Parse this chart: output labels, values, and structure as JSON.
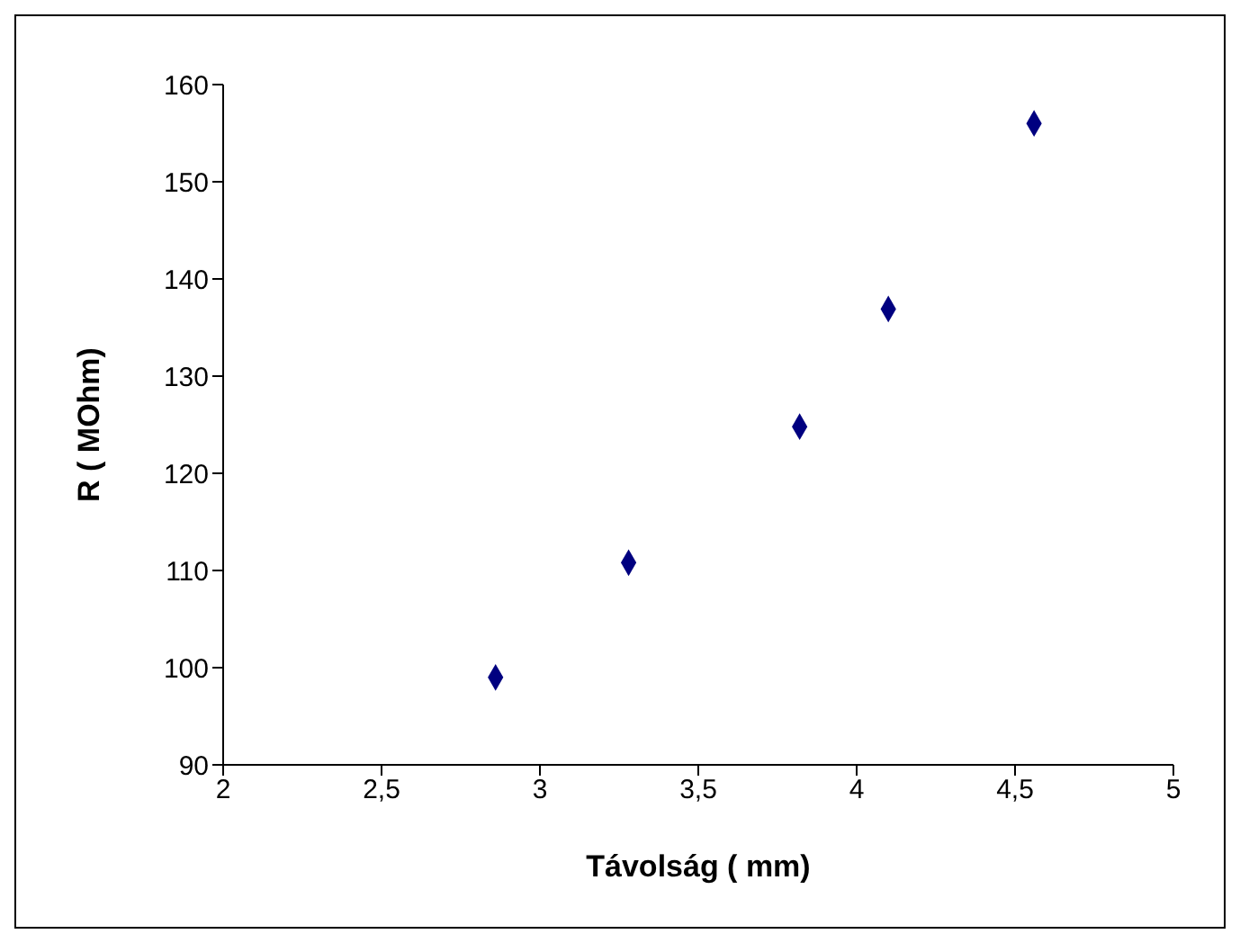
{
  "chart_data": {
    "type": "scatter",
    "xlabel": "Távolság ( mm)",
    "ylabel": "R ( MOhm)",
    "x": [
      2.86,
      3.28,
      3.82,
      4.1,
      4.56
    ],
    "series": [
      {
        "color": "#000080",
        "values": [
          99,
          110.8,
          124.8,
          136.9,
          156
        ]
      }
    ],
    "xlim": [
      2,
      5
    ],
    "xticks": [
      2,
      {
        "value": 2.5,
        "label": "2,5"
      },
      3,
      {
        "value": 3.5,
        "label": "3,5"
      },
      4,
      {
        "value": 4.5,
        "label": "4,5"
      },
      5
    ],
    "ylim": [
      90,
      160
    ],
    "yticks": [
      90,
      100,
      110,
      120,
      130,
      140,
      150,
      160
    ],
    "marker": "diamond",
    "grid": false,
    "legend": false
  }
}
